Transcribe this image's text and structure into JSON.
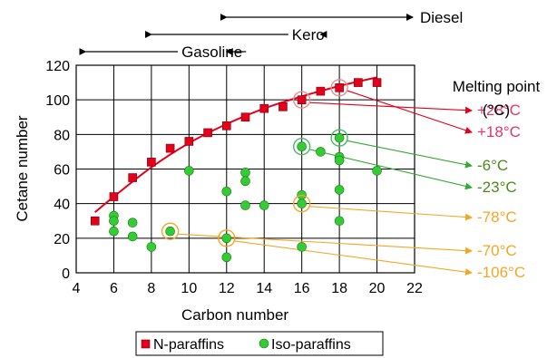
{
  "chart_data": {
    "type": "scatter",
    "xlabel": "Carbon number",
    "ylabel": "Cetane number",
    "xlim": [
      4,
      22
    ],
    "ylim": [
      0,
      120
    ],
    "x_ticks": [
      4,
      6,
      8,
      10,
      12,
      14,
      16,
      18,
      20,
      22
    ],
    "y_ticks": [
      0,
      20,
      40,
      60,
      80,
      100,
      120
    ],
    "grid": true,
    "legend_position": "bottom",
    "series": [
      {
        "name": "N-paraffins",
        "marker": "square",
        "color": "#e4001b",
        "points": [
          [
            5,
            30
          ],
          [
            6,
            44
          ],
          [
            7,
            55
          ],
          [
            8,
            64
          ],
          [
            9,
            72
          ],
          [
            10,
            76
          ],
          [
            11,
            81
          ],
          [
            12,
            85
          ],
          [
            13,
            90
          ],
          [
            14,
            95
          ],
          [
            15,
            96
          ],
          [
            16,
            100
          ],
          [
            17,
            105
          ],
          [
            18,
            107
          ],
          [
            19,
            110
          ],
          [
            20,
            110
          ]
        ]
      },
      {
        "name": "Iso-paraffins",
        "marker": "circle",
        "color": "#33cc33",
        "points": [
          [
            6,
            33
          ],
          [
            6,
            30
          ],
          [
            6,
            24
          ],
          [
            7,
            29
          ],
          [
            7,
            21
          ],
          [
            8,
            15
          ],
          [
            9,
            24
          ],
          [
            10,
            59
          ],
          [
            12,
            47
          ],
          [
            12,
            20
          ],
          [
            12,
            9
          ],
          [
            13,
            58
          ],
          [
            13,
            53
          ],
          [
            13,
            39
          ],
          [
            14,
            39
          ],
          [
            16,
            73
          ],
          [
            16,
            45
          ],
          [
            16,
            40
          ],
          [
            16,
            15
          ],
          [
            17,
            70
          ],
          [
            18,
            78
          ],
          [
            18,
            67
          ],
          [
            18,
            65
          ],
          [
            18,
            48
          ],
          [
            18,
            30
          ],
          [
            20,
            59
          ]
        ]
      }
    ],
    "trendline": {
      "color": "#e4001b",
      "points": [
        [
          5,
          35
        ],
        [
          6,
          44
        ],
        [
          8,
          61
        ],
        [
          10,
          75
        ],
        [
          12,
          86
        ],
        [
          14,
          95
        ],
        [
          16,
          102
        ],
        [
          18,
          108
        ],
        [
          20,
          113
        ]
      ]
    },
    "fuel_ranges": [
      {
        "label": "Gasoline",
        "from": 4.5,
        "to": 12
      },
      {
        "label": "Kero",
        "from": 8,
        "to": 17
      },
      {
        "label": "Diesel",
        "from": 12,
        "to": 22
      }
    ],
    "melting_point_title": "Melting point",
    "melting_point_unit": "(°C)",
    "melting_points": [
      {
        "label": "+28°C",
        "x": 16,
        "y": 100,
        "color": "#e83365"
      },
      {
        "label": "+18°C",
        "x": 18,
        "y": 107,
        "color": "#e83365"
      },
      {
        "label": "-6°C",
        "x": 18,
        "y": 78,
        "color": "#4e8a1a"
      },
      {
        "label": "-23°C",
        "x": 16,
        "y": 73,
        "color": "#4e8a1a"
      },
      {
        "label": "-78°C",
        "x": 16,
        "y": 40,
        "color": "#f5a623"
      },
      {
        "label": "-70°C",
        "x": 9,
        "y": 24,
        "color": "#f5a623"
      },
      {
        "label": "-106°C",
        "x": 12,
        "y": 20,
        "color": "#f5a623"
      }
    ]
  }
}
